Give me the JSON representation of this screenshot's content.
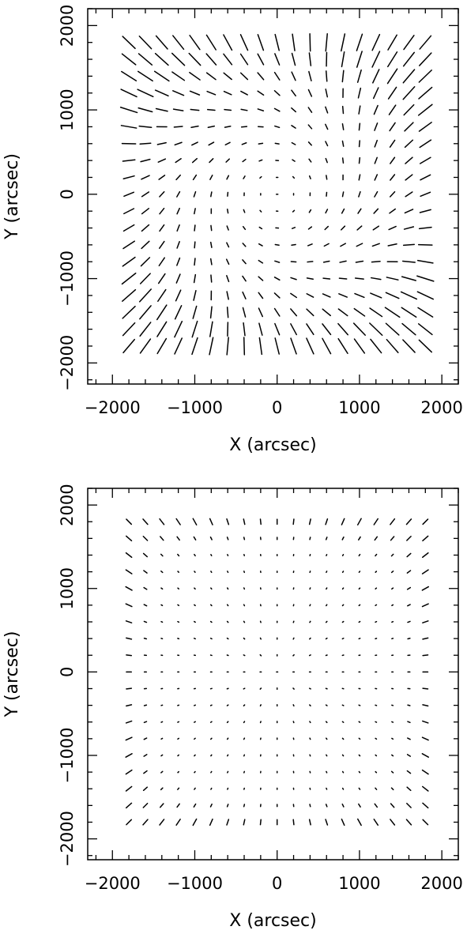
{
  "figure": {
    "background": "#ffffff",
    "ink": "#000000"
  },
  "chart_data": [
    {
      "type": "vector-field",
      "title": "",
      "xlabel": "X (arcsec)",
      "ylabel": "Y (arcsec)",
      "xlim": [
        -2300,
        2200
      ],
      "ylim": [
        -2250,
        2200
      ],
      "xticks_major": [
        -2000,
        -1000,
        0,
        1000,
        2000
      ],
      "yticks_major": [
        -2000,
        -1000,
        0,
        1000,
        2000
      ],
      "xtick_labels": [
        "−2000",
        "−1000",
        "0",
        "1000",
        "2000"
      ],
      "ytick_labels": [
        "−2000",
        "−1000",
        "0",
        "1000",
        "2000"
      ],
      "minor_tick_step": 200,
      "grid": false,
      "legend": "none",
      "grid_points": {
        "x": [
          -1800,
          -1600,
          -1400,
          -1200,
          -1000,
          -800,
          -600,
          -400,
          -200,
          0,
          200,
          400,
          600,
          800,
          1000,
          1200,
          1400,
          1600,
          1800
        ],
        "y": [
          -1800,
          -1600,
          -1400,
          -1200,
          -1000,
          -800,
          -600,
          -400,
          -200,
          0,
          200,
          400,
          600,
          800,
          1000,
          1200,
          1400,
          1600,
          1800
        ]
      },
      "vector_length_scale": "large",
      "pattern": "strong distortion; sticks tilt toward corners at top/bottom edges and form a tangential swirl around the centre"
    },
    {
      "type": "vector-field",
      "title": "",
      "xlabel": "X (arcsec)",
      "ylabel": "Y (arcsec)",
      "xlim": [
        -2300,
        2200
      ],
      "ylim": [
        -2250,
        2200
      ],
      "xticks_major": [
        -2000,
        -1000,
        0,
        1000,
        2000
      ],
      "yticks_major": [
        -2000,
        -1000,
        0,
        1000,
        2000
      ],
      "xtick_labels": [
        "−2000",
        "−1000",
        "0",
        "1000",
        "2000"
      ],
      "ytick_labels": [
        "−2000",
        "−1000",
        "0",
        "1000",
        "2000"
      ],
      "minor_tick_step": 200,
      "grid": false,
      "legend": "none",
      "grid_points": {
        "x": [
          -1800,
          -1600,
          -1400,
          -1200,
          -1000,
          -800,
          -600,
          -400,
          -200,
          0,
          200,
          400,
          600,
          800,
          1000,
          1200,
          1400,
          1600,
          1800
        ],
        "y": [
          -1800,
          -1600,
          -1400,
          -1200,
          -1000,
          -800,
          -600,
          -400,
          -200,
          0,
          200,
          400,
          600,
          800,
          1000,
          1200,
          1400,
          1600,
          1800
        ]
      },
      "vector_length_scale": "small",
      "pattern": "residuals after correction; near-dot vectors, slightly longer sticks at the corners"
    }
  ]
}
